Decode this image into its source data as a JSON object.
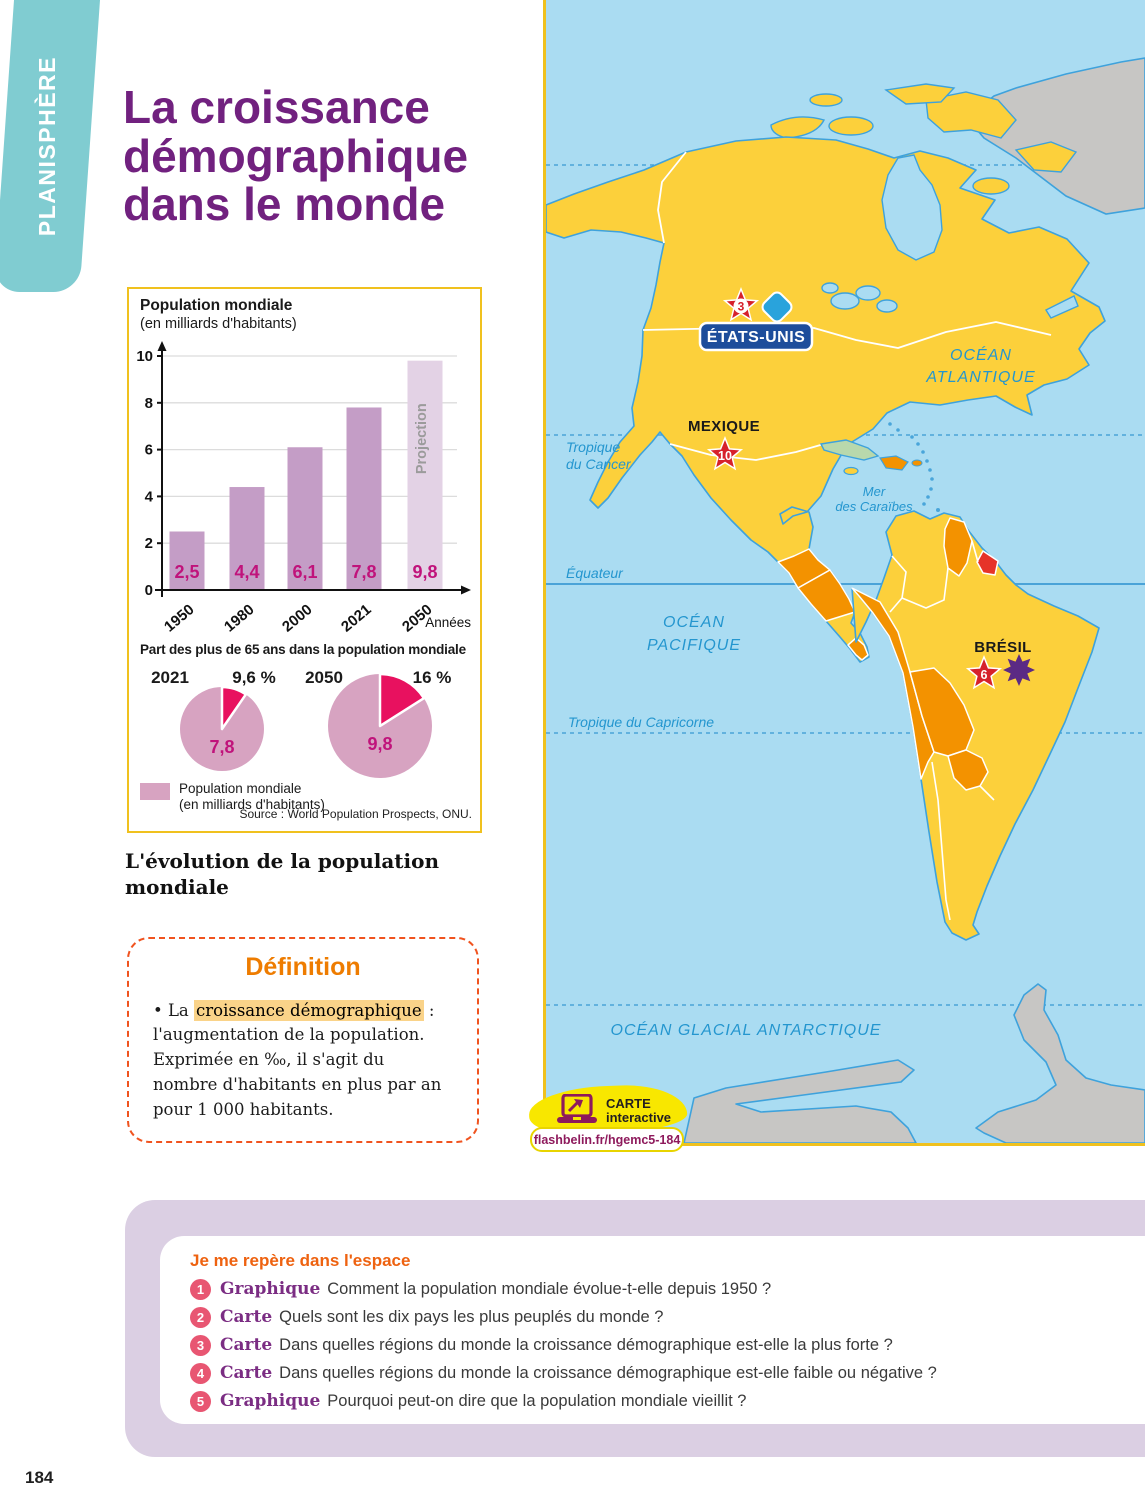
{
  "page": {
    "tab": "PLANISPHÈRE",
    "title": "La croissance démographique dans le monde",
    "number": "184"
  },
  "colors": {
    "accent_purple": "#71217f",
    "tab_teal": "#80ccd1",
    "box_border_gold": "#f0c11e",
    "bar_fill": "#c49dc6",
    "bar_projection_fill": "#e3d2e5",
    "value_magenta": "#c0137b",
    "pie_body": "#d7a3c1",
    "pie_slice": "#e8115f",
    "map_ocean": "#aadcf2",
    "map_land_yellow": "#fcd03b",
    "map_growth_orange": "#f39200",
    "map_growth_red": "#e63329",
    "map_low_green": "#b8d8ac",
    "map_neutral_gray": "#c7c6c4",
    "question_badge_pink": "#e85672",
    "definition_orange": "#f0531f"
  },
  "chart_data": [
    {
      "type": "bar",
      "title": "Population mondiale",
      "subtitle": "(en milliards d'habitants)",
      "categories": [
        "1950",
        "1980",
        "2000",
        "2021",
        "2050"
      ],
      "values": [
        2.5,
        4.4,
        6.1,
        7.8,
        9.8
      ],
      "value_labels": [
        "2,5",
        "4,4",
        "6,1",
        "7,8",
        "9,8"
      ],
      "projection_index": 4,
      "projection_label": "Projection",
      "xlabel": "Années",
      "ylabel": "",
      "ylim": [
        0,
        10
      ],
      "yticks": [
        0,
        2,
        4,
        6,
        8,
        10
      ],
      "grid": true
    },
    {
      "type": "pie",
      "title": "Part des plus de 65 ans dans la population mondiale",
      "pies": [
        {
          "year": "2021",
          "share_label": "9,6 %",
          "share_pct": 9.6,
          "total_label": "7,8"
        },
        {
          "year": "2050",
          "share_label": "16 %",
          "share_pct": 16,
          "total_label": "9,8"
        }
      ],
      "legend": "Population mondiale (en milliards d'habitants)"
    }
  ],
  "figure": {
    "legend_line1": "Population mondiale",
    "legend_line2": "(en milliards d'habitants)",
    "source": "Source : World Population Prospects, ONU.",
    "caption": "L'évolution de la population mondiale"
  },
  "definition": {
    "title": "Définition",
    "bullet": "•",
    "lead": " La ",
    "highlight": "croissance démographique",
    "after_highlight": " : ",
    "body": "l'augmentation de la population. Exprimée en ‰, il s'agit du nombre d'habitants en plus par an pour 1 000 habitants."
  },
  "map": {
    "oceans": {
      "atlantic1": "OCÉAN",
      "atlantic2": "ATLANTIQUE",
      "pacific1": "OCÉAN",
      "pacific2": "PACIFIQUE",
      "caribbean1": "Mer",
      "caribbean2": "des Caraïbes",
      "antarctic": "OCÉAN GLACIAL ANTARCTIQUE"
    },
    "lines": {
      "cancer1": "Tropique",
      "cancer2": "du Cancer",
      "equator": "Équateur",
      "capricorn": "Tropique du Capricorne"
    },
    "countries": {
      "usa": "ÉTATS-UNIS",
      "mexico": "MEXIQUE",
      "brazil": "BRÉSIL"
    },
    "markers": {
      "usa_rank": "3",
      "mexico_rank": "10",
      "brazil_rank": "6"
    },
    "badge": {
      "line1": "CARTE",
      "line2": "interactive",
      "url": "flashbelin.fr/hgemc5-184"
    }
  },
  "questions": {
    "heading": "Je me repère dans l'espace",
    "items": [
      {
        "num": "1",
        "tag": "Graphique",
        "text": "Comment la population mondiale évolue-t-elle depuis 1950 ?"
      },
      {
        "num": "2",
        "tag": "Carte",
        "text": "Quels sont les dix pays les plus peuplés du monde ?"
      },
      {
        "num": "3",
        "tag": "Carte",
        "text": "Dans quelles régions du monde la croissance démographique est-elle la plus forte ?"
      },
      {
        "num": "4",
        "tag": "Carte",
        "text": "Dans quelles régions du monde la croissance démographique est-elle faible ou négative ?"
      },
      {
        "num": "5",
        "tag": "Graphique",
        "text": "Pourquoi peut-on dire que la population mondiale vieillit ?"
      }
    ]
  }
}
